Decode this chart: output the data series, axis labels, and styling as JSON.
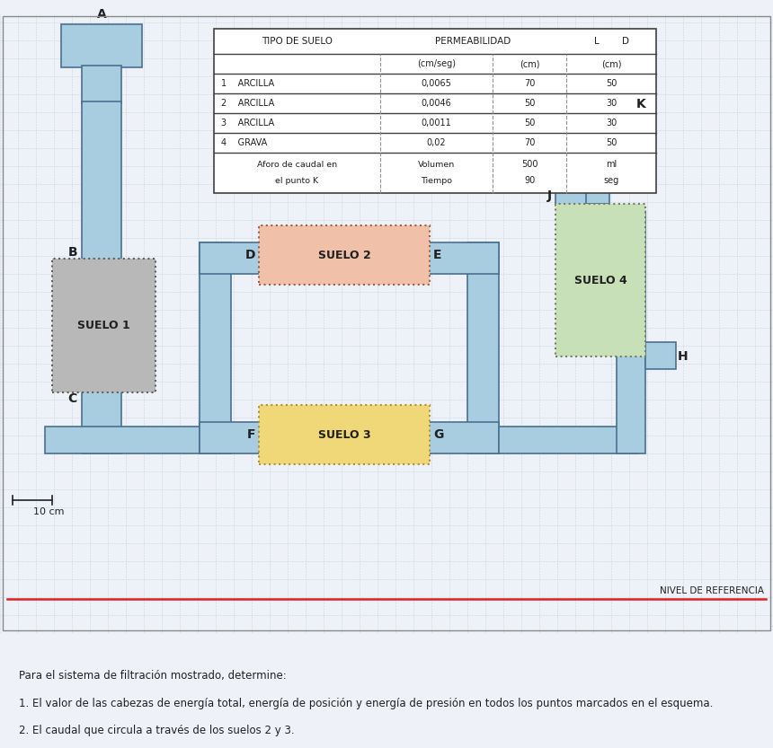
{
  "bg_color": "#eef2f8",
  "grid_color": "#c5d5e5",
  "pipe_color": "#a8cce0",
  "pipe_edge": "#4a7090",
  "suelo1_color": "#b8b8b8",
  "suelo1_edge": "#606060",
  "suelo2_color": "#f0c0a8",
  "suelo2_edge": "#a06040",
  "suelo3_color": "#f0d878",
  "suelo3_edge": "#b09030",
  "suelo4_color": "#c8e0b8",
  "suelo4_edge": "#708060",
  "ref_line_color": "#dd2020",
  "border_color": "#888888",
  "text_color": "#202020",
  "table_bg": "#ffffff",
  "table_border": "#404040",
  "table_line": "#909090",
  "footer_lines": [
    "Para el sistema de filtración mostrado, determine:",
    "1. El valor de las cabezas de energía total, energía de posición y energía de presión en todos los puntos marcados en el esquema.",
    "2. El caudal que circula a través de los suelos 2 y 3."
  ]
}
